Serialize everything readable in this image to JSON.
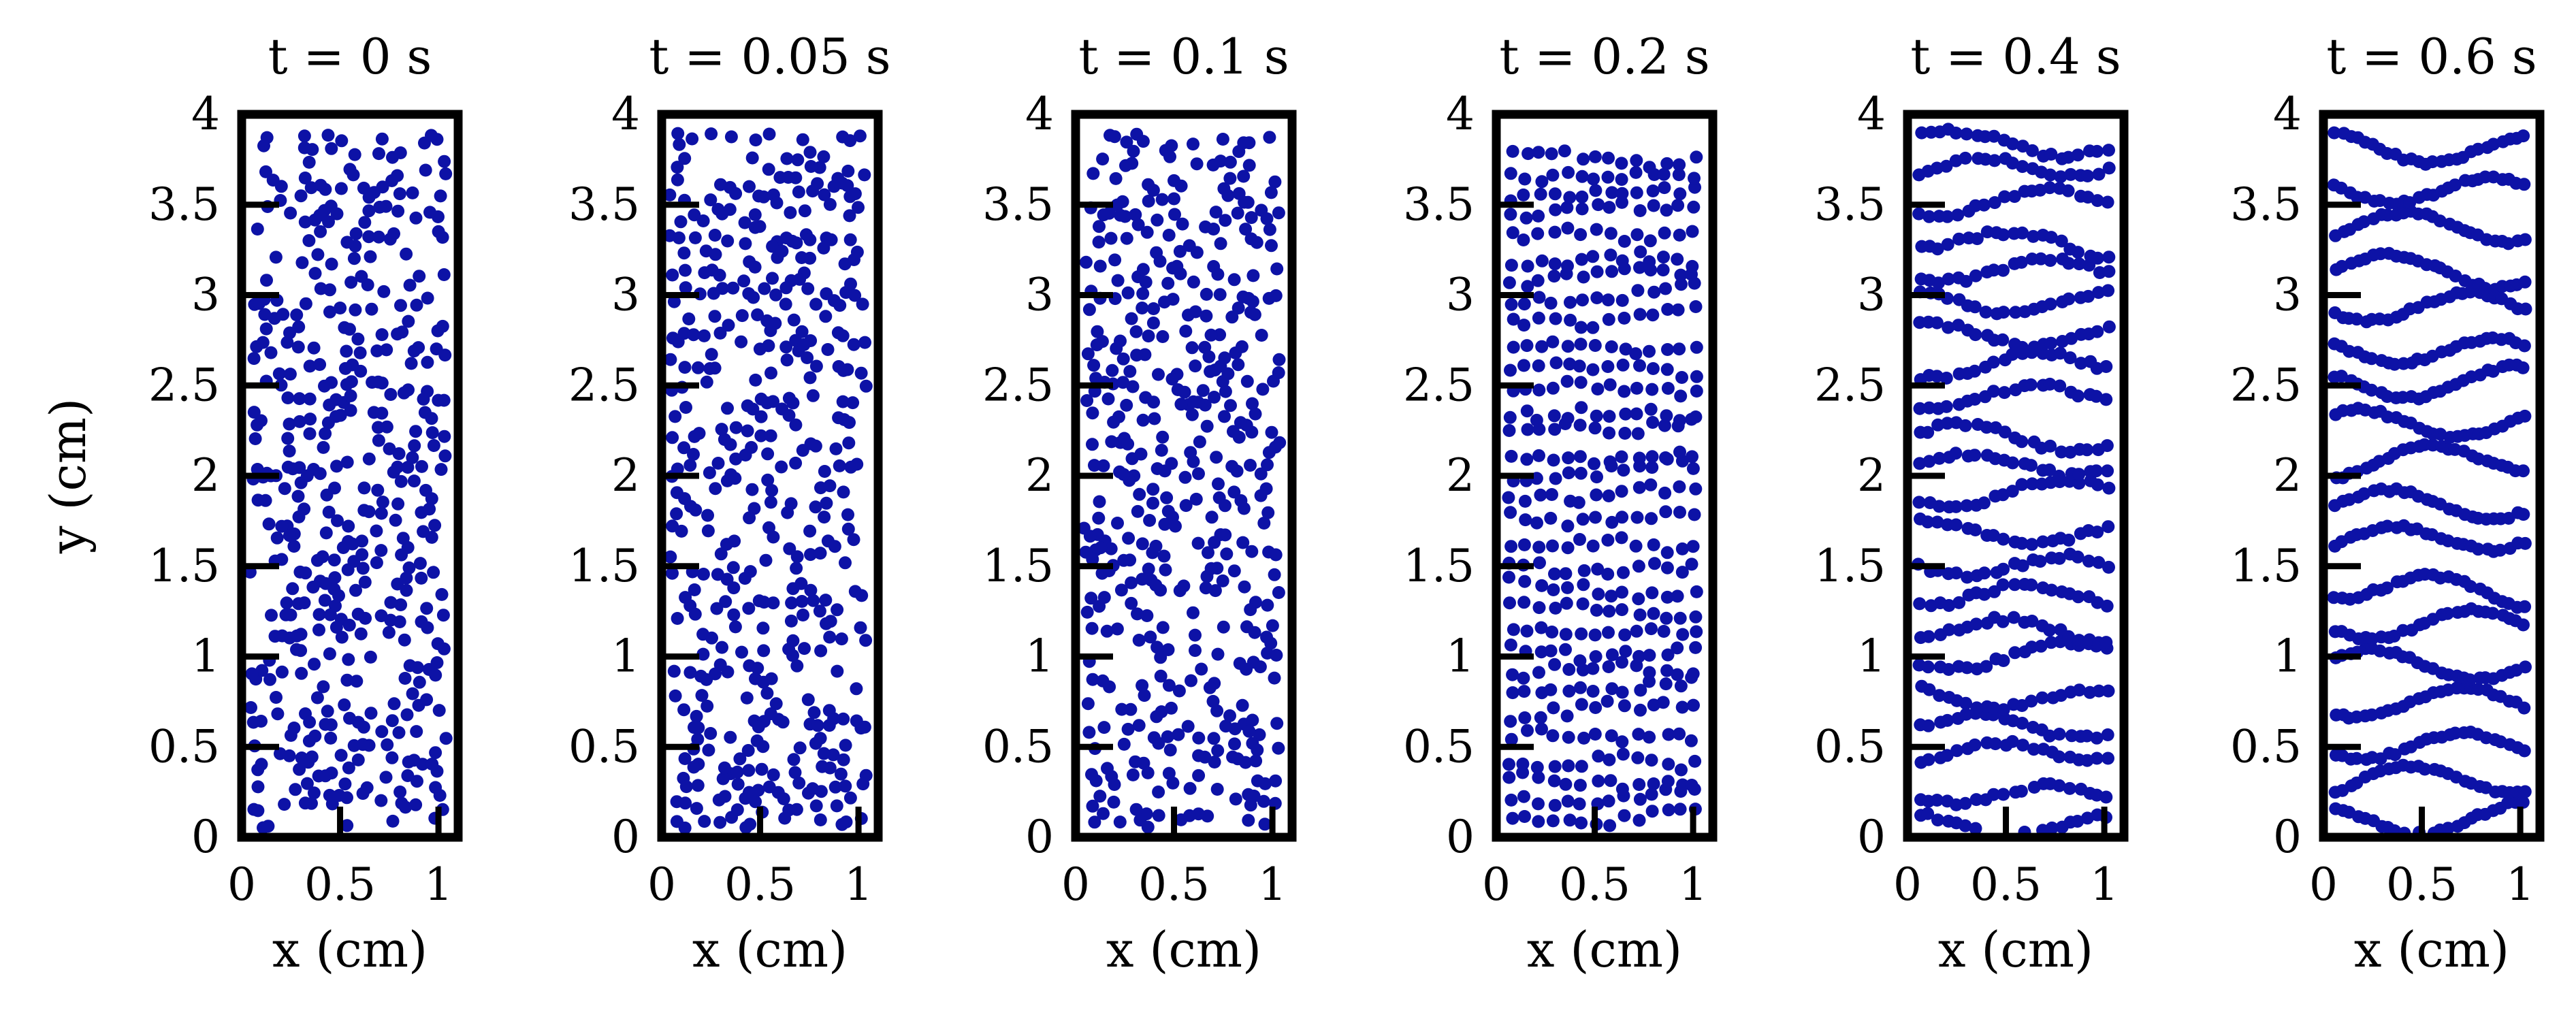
{
  "colors": {
    "point": "#0d12a6",
    "axis": "#000000",
    "background": "#ffffff"
  },
  "chart_data": [
    {
      "type": "scatter",
      "title": "t = 0 s",
      "xlabel": "x (cm)",
      "ylabel": "y (cm)",
      "xlim": [
        0,
        1.1
      ],
      "ylim": [
        0,
        4
      ],
      "xticks": [
        "0",
        "0.5",
        "1"
      ],
      "yticks": [
        "0",
        "0.5",
        "1",
        "1.5",
        "2",
        "2.5",
        "3",
        "3.5",
        "4"
      ],
      "grid": false,
      "pattern": "random",
      "n_points": 440,
      "seed": 11
    },
    {
      "type": "scatter",
      "title": "t = 0.05 s",
      "xlabel": "x (cm)",
      "ylabel": "",
      "xlim": [
        0,
        1.1
      ],
      "ylim": [
        0,
        4
      ],
      "xticks": [
        "0",
        "0.5",
        "1"
      ],
      "yticks": [
        "0",
        "0.5",
        "1",
        "1.5",
        "2",
        "2.5",
        "3",
        "3.5",
        "4"
      ],
      "grid": false,
      "pattern": "random",
      "n_points": 440,
      "seed": 23
    },
    {
      "type": "scatter",
      "title": "t = 0.1 s",
      "xlabel": "x (cm)",
      "ylabel": "",
      "xlim": [
        0,
        1.1
      ],
      "ylim": [
        0,
        4
      ],
      "xticks": [
        "0",
        "0.5",
        "1"
      ],
      "yticks": [
        "0",
        "0.5",
        "1",
        "1.5",
        "2",
        "2.5",
        "3",
        "3.5",
        "4"
      ],
      "grid": false,
      "pattern": "random",
      "n_points": 440,
      "seed": 37
    },
    {
      "type": "scatter",
      "title": "t = 0.2 s",
      "xlabel": "x (cm)",
      "ylabel": "",
      "xlim": [
        0,
        1.1
      ],
      "ylim": [
        0,
        4
      ],
      "xticks": [
        "0",
        "0.5",
        "1"
      ],
      "yticks": [
        "0",
        "0.5",
        "1",
        "1.5",
        "2",
        "2.5",
        "3",
        "3.5",
        "4"
      ],
      "grid": false,
      "pattern": "rows",
      "row_spacing": 0.12,
      "row_jitter": 0.03,
      "wave_amp": 0.02,
      "n_points": 440,
      "seed": 51
    },
    {
      "type": "scatter",
      "title": "t = 0.4 s",
      "xlabel": "x (cm)",
      "ylabel": "",
      "xlim": [
        0,
        1.1
      ],
      "ylim": [
        0,
        4
      ],
      "xticks": [
        "0",
        "0.5",
        "1"
      ],
      "yticks": [
        "0",
        "0.5",
        "1",
        "1.5",
        "2",
        "2.5",
        "3",
        "3.5",
        "4"
      ],
      "grid": false,
      "pattern": "rows",
      "row_spacing": 0.18,
      "row_jitter": 0.015,
      "wave_amp": 0.06,
      "n_points": 440,
      "seed": 67
    },
    {
      "type": "scatter",
      "title": "t = 0.6 s",
      "xlabel": "x (cm)",
      "ylabel": "",
      "xlim": [
        0,
        1.1
      ],
      "ylim": [
        0,
        4
      ],
      "xticks": [
        "0",
        "0.5",
        "1"
      ],
      "yticks": [
        "0",
        "0.5",
        "1",
        "1.5",
        "2",
        "2.5",
        "3",
        "3.5",
        "4"
      ],
      "grid": false,
      "pattern": "rows",
      "row_spacing": 0.22,
      "row_jitter": 0.01,
      "wave_amp": 0.08,
      "n_points": 440,
      "seed": 83
    }
  ]
}
